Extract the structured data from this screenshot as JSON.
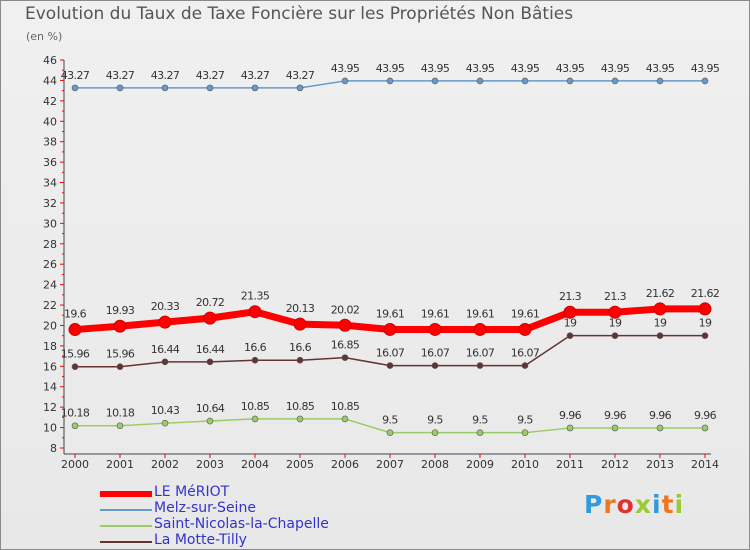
{
  "chart_data": {
    "type": "line",
    "title": "Evolution du Taux de Taxe Foncière sur les Propriétés Non Bâties",
    "subtitle": "(en %)",
    "categories": [
      "2000",
      "2001",
      "2002",
      "2003",
      "2004",
      "2005",
      "2006",
      "2007",
      "2008",
      "2009",
      "2010",
      "2011",
      "2012",
      "2013",
      "2014"
    ],
    "ylim": [
      8,
      46
    ],
    "yticks": [
      8,
      10,
      12,
      14,
      16,
      18,
      20,
      22,
      24,
      26,
      28,
      30,
      32,
      34,
      36,
      38,
      40,
      42,
      44,
      46
    ],
    "series": [
      {
        "name": "LE MéRIOT",
        "color": "#ff0000",
        "values": [
          19.6,
          19.93,
          20.33,
          20.72,
          21.35,
          20.13,
          20.02,
          19.61,
          19.61,
          19.61,
          19.61,
          21.3,
          21.3,
          21.62,
          21.62
        ],
        "labels": [
          "19.6",
          "19.93",
          "20.33",
          "20.72",
          "21.35",
          "20.13",
          "20.02",
          "19.61",
          "19.61",
          "19.61",
          "19.61",
          "21.3",
          "21.3",
          "21.62",
          "21.62"
        ]
      },
      {
        "name": "Melz-sur-Seine",
        "color": "#6699cc",
        "values": [
          43.27,
          43.27,
          43.27,
          43.27,
          43.27,
          43.27,
          43.95,
          43.95,
          43.95,
          43.95,
          43.95,
          43.95,
          43.95,
          43.95,
          43.95
        ],
        "labels": [
          "43.27",
          "43.27",
          "43.27",
          "43.27",
          "43.27",
          "43.27",
          "43.95",
          "43.95",
          "43.95",
          "43.95",
          "43.95",
          "43.95",
          "43.95",
          "43.95",
          "43.95"
        ]
      },
      {
        "name": "Saint-Nicolas-la-Chapelle",
        "color": "#99cc66",
        "values": [
          10.18,
          10.18,
          10.43,
          10.64,
          10.85,
          10.85,
          10.85,
          9.5,
          9.5,
          9.5,
          9.5,
          9.96,
          9.96,
          9.96,
          9.96
        ],
        "labels": [
          "10.18",
          "10.18",
          "10.43",
          "10.64",
          "10.85",
          "10.85",
          "10.85",
          "9.5",
          "9.5",
          "9.5",
          "9.5",
          "9.96",
          "9.96",
          "9.96",
          "9.96"
        ]
      },
      {
        "name": "La Motte-Tilly",
        "color": "#663333",
        "values": [
          15.96,
          15.96,
          16.44,
          16.44,
          16.6,
          16.6,
          16.85,
          16.07,
          16.07,
          16.07,
          16.07,
          19,
          19,
          19,
          19
        ],
        "labels": [
          "15.96",
          "15.96",
          "16.44",
          "16.44",
          "16.6",
          "16.6",
          "16.85",
          "16.07",
          "16.07",
          "16.07",
          "16.07",
          "19",
          "19",
          "19",
          "19"
        ]
      }
    ],
    "legend": "bottom-left",
    "grid": false
  },
  "logo": {
    "text": "Proxiti"
  }
}
